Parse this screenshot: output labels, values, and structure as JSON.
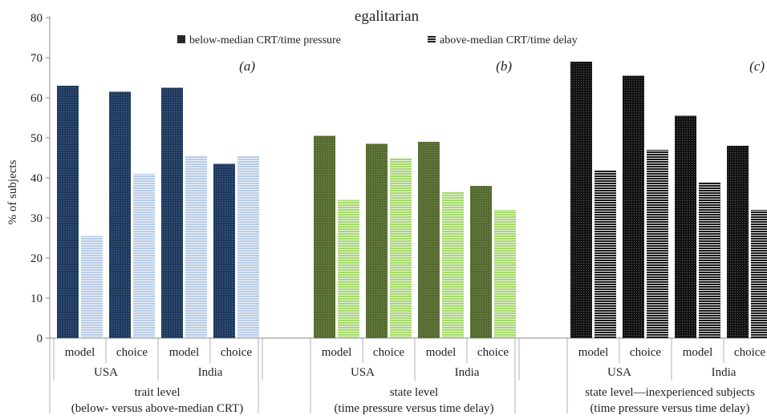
{
  "chart_data": {
    "type": "bar",
    "title": "egalitarian",
    "ylabel": "% of subjects",
    "ylim": [
      0,
      80
    ],
    "yticks": [
      0,
      10,
      20,
      30,
      40,
      50,
      60,
      70,
      80
    ],
    "grid": false,
    "legend_placement": "top-center",
    "legend": [
      {
        "label": "below-median CRT/time pressure",
        "icon": "dotted-square-icon"
      },
      {
        "label": "above-median CRT/time delay",
        "icon": "striped-square-icon"
      }
    ],
    "panels": [
      {
        "letter": "(a)",
        "section_line1": "trait level",
        "section_line2": "(below- versus above-median CRT)",
        "colors": {
          "below": "#1f3a5f",
          "above": "#b9cce6",
          "stripe": "#ffffff"
        },
        "groups": [
          {
            "label": "USA",
            "categories": [
              "model",
              "choice"
            ],
            "below": [
              63,
              61.5
            ],
            "above": [
              25.5,
              41
            ]
          },
          {
            "label": "India",
            "categories": [
              "model",
              "choice"
            ],
            "below": [
              62.5,
              43.5
            ],
            "above": [
              45.5,
              45.5
            ]
          }
        ]
      },
      {
        "letter": "(b)",
        "section_line1": "state level",
        "section_line2": "(time pressure versus time delay)",
        "colors": {
          "below": "#556b2f",
          "above": "#a6d86e",
          "stripe": "#ffffff"
        },
        "groups": [
          {
            "label": "USA",
            "categories": [
              "model",
              "choice"
            ],
            "below": [
              50.5,
              48.5
            ],
            "above": [
              34.5,
              45
            ]
          },
          {
            "label": "India",
            "categories": [
              "model",
              "choice"
            ],
            "below": [
              49,
              38
            ],
            "above": [
              36.5,
              32
            ]
          }
        ]
      },
      {
        "letter": "(c)",
        "section_line1": "state level—inexperienced subjects",
        "section_line2": "(time pressure versus time delay)",
        "colors": {
          "below": "#111111",
          "above": "#1a1a1a",
          "stripe": "#ffffff"
        },
        "groups": [
          {
            "label": "USA",
            "categories": [
              "model",
              "choice"
            ],
            "below": [
              69,
              65.5
            ],
            "above": [
              42,
              47
            ]
          },
          {
            "label": "India",
            "categories": [
              "model",
              "choice"
            ],
            "below": [
              55.5,
              48
            ],
            "above": [
              39,
              32
            ]
          }
        ]
      }
    ]
  }
}
